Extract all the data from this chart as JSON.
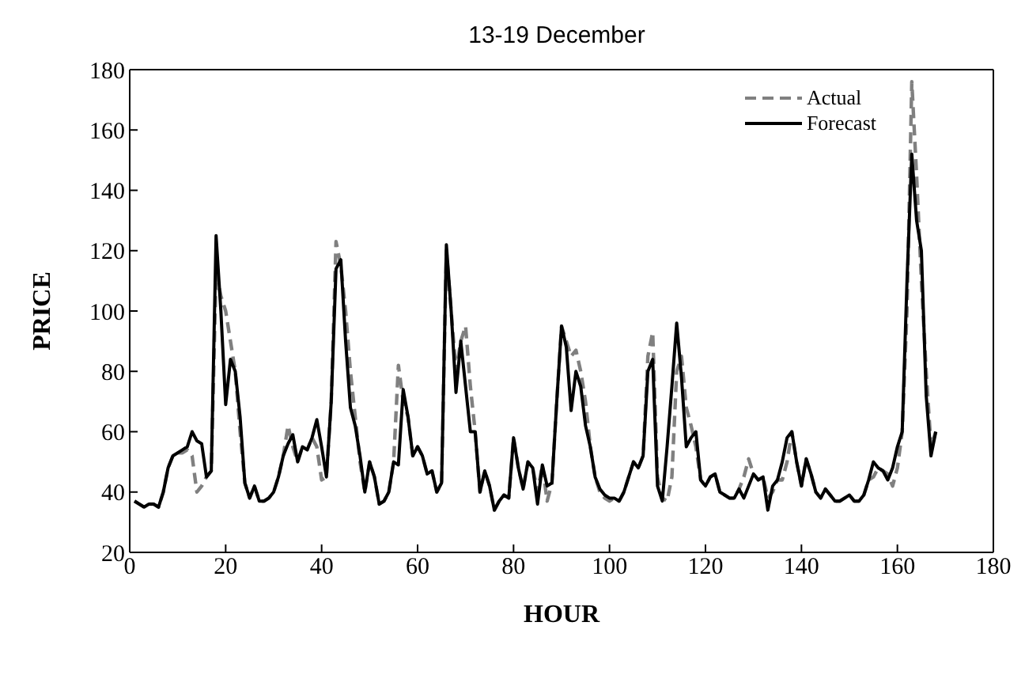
{
  "chart_data": {
    "type": "line",
    "title": "13-19 December",
    "xlabel": "HOUR",
    "ylabel": "PRICE",
    "x": [
      1,
      2,
      3,
      4,
      5,
      6,
      7,
      8,
      9,
      10,
      11,
      12,
      13,
      14,
      15,
      16,
      17,
      18,
      19,
      20,
      21,
      22,
      23,
      24,
      25,
      26,
      27,
      28,
      29,
      30,
      31,
      32,
      33,
      34,
      35,
      36,
      37,
      38,
      39,
      40,
      41,
      42,
      43,
      44,
      45,
      46,
      47,
      48,
      49,
      50,
      51,
      52,
      53,
      54,
      55,
      56,
      57,
      58,
      59,
      60,
      61,
      62,
      63,
      64,
      65,
      66,
      67,
      68,
      69,
      70,
      71,
      72,
      73,
      74,
      75,
      76,
      77,
      78,
      79,
      80,
      81,
      82,
      83,
      84,
      85,
      86,
      87,
      88,
      89,
      90,
      91,
      92,
      93,
      94,
      95,
      96,
      97,
      98,
      99,
      100,
      101,
      102,
      103,
      104,
      105,
      106,
      107,
      108,
      109,
      110,
      111,
      112,
      113,
      114,
      115,
      116,
      117,
      118,
      119,
      120,
      121,
      122,
      123,
      124,
      125,
      126,
      127,
      128,
      129,
      130,
      131,
      132,
      133,
      134,
      135,
      136,
      137,
      138,
      139,
      140,
      141,
      142,
      143,
      144,
      145,
      146,
      147,
      148,
      149,
      150,
      151,
      152,
      153,
      154,
      155,
      156,
      157,
      158,
      159,
      160,
      161,
      162,
      163,
      164,
      165,
      166,
      167,
      168
    ],
    "series": [
      {
        "name": "Actual",
        "color": "#808080",
        "line_style": "dashed",
        "values": [
          37,
          36,
          35,
          36,
          36,
          35,
          40,
          48,
          52,
          53,
          53,
          54,
          52,
          40,
          42,
          45,
          47,
          113,
          105,
          100,
          90,
          80,
          60,
          43,
          38,
          42,
          37,
          37,
          38,
          40,
          45,
          52,
          62,
          55,
          50,
          55,
          54,
          58,
          55,
          44,
          45,
          70,
          123,
          115,
          100,
          80,
          65,
          50,
          40,
          50,
          45,
          36,
          37,
          40,
          50,
          82,
          70,
          65,
          52,
          55,
          52,
          46,
          47,
          40,
          43,
          120,
          100,
          80,
          90,
          95,
          75,
          60,
          40,
          47,
          42,
          34,
          37,
          39,
          38,
          58,
          48,
          41,
          50,
          48,
          40,
          49,
          37,
          43,
          70,
          95,
          90,
          85,
          87,
          80,
          70,
          55,
          45,
          40,
          38,
          37,
          38,
          37,
          40,
          45,
          50,
          48,
          52,
          85,
          93,
          45,
          38,
          37,
          45,
          80,
          85,
          68,
          62,
          55,
          44,
          42,
          45,
          46,
          40,
          39,
          38,
          38,
          41,
          45,
          51,
          46,
          44,
          45,
          38,
          40,
          44,
          44,
          50,
          60,
          50,
          42,
          51,
          46,
          40,
          38,
          41,
          39,
          37,
          37,
          38,
          39,
          37,
          37,
          39,
          44,
          45,
          48,
          47,
          46,
          42,
          48,
          60,
          100,
          176,
          145,
          110,
          80,
          55,
          60
        ]
      },
      {
        "name": "Forecast",
        "color": "#000000",
        "line_style": "solid",
        "values": [
          37,
          36,
          35,
          36,
          36,
          35,
          40,
          48,
          52,
          53,
          54,
          55,
          60,
          57,
          56,
          45,
          47,
          125,
          100,
          69,
          84,
          80,
          65,
          43,
          38,
          42,
          37,
          37,
          38,
          40,
          45,
          52,
          56,
          59,
          50,
          55,
          54,
          58,
          64,
          55,
          45,
          70,
          114,
          117,
          90,
          68,
          62,
          52,
          40,
          50,
          45,
          36,
          37,
          40,
          50,
          49,
          74,
          65,
          52,
          55,
          52,
          46,
          47,
          40,
          43,
          122,
          100,
          73,
          90,
          75,
          60,
          60,
          40,
          47,
          42,
          34,
          37,
          39,
          38,
          58,
          48,
          41,
          50,
          48,
          36,
          49,
          42,
          43,
          70,
          95,
          88,
          67,
          80,
          75,
          62,
          55,
          45,
          41,
          39,
          38,
          38,
          37,
          40,
          45,
          50,
          48,
          52,
          80,
          84,
          42,
          37,
          55,
          75,
          96,
          78,
          55,
          58,
          60,
          44,
          42,
          45,
          46,
          40,
          39,
          38,
          38,
          41,
          38,
          42,
          46,
          44,
          45,
          34,
          42,
          44,
          50,
          58,
          60,
          50,
          42,
          51,
          46,
          40,
          38,
          41,
          39,
          37,
          37,
          38,
          39,
          37,
          37,
          39,
          44,
          50,
          48,
          47,
          44,
          48,
          55,
          60,
          110,
          152,
          130,
          120,
          72,
          52,
          60
        ]
      }
    ],
    "xlim": [
      0,
      180
    ],
    "xticks": [
      0,
      20,
      40,
      60,
      80,
      100,
      120,
      140,
      160,
      180
    ],
    "ylim": [
      20,
      180
    ],
    "yticks": [
      20,
      40,
      60,
      80,
      100,
      120,
      140,
      160,
      180
    ],
    "grid": false,
    "legend": "top right",
    "marker": "none"
  }
}
